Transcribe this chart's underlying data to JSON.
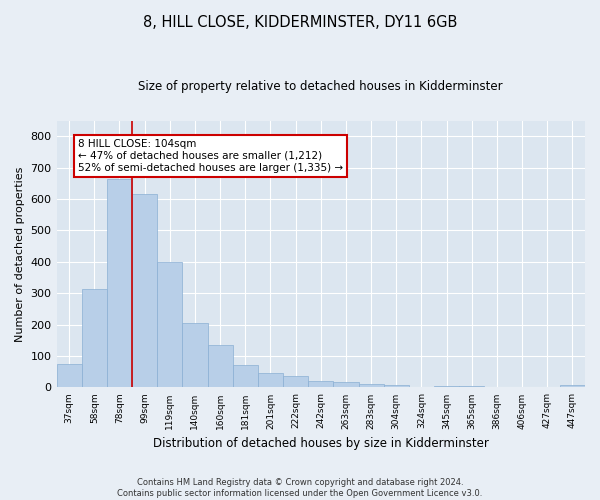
{
  "title": "8, HILL CLOSE, KIDDERMINSTER, DY11 6GB",
  "subtitle": "Size of property relative to detached houses in Kidderminster",
  "xlabel": "Distribution of detached houses by size in Kidderminster",
  "ylabel": "Number of detached properties",
  "categories": [
    "37sqm",
    "58sqm",
    "78sqm",
    "99sqm",
    "119sqm",
    "140sqm",
    "160sqm",
    "181sqm",
    "201sqm",
    "222sqm",
    "242sqm",
    "263sqm",
    "283sqm",
    "304sqm",
    "324sqm",
    "345sqm",
    "365sqm",
    "386sqm",
    "406sqm",
    "427sqm",
    "447sqm"
  ],
  "values": [
    75,
    315,
    665,
    615,
    400,
    205,
    135,
    70,
    47,
    37,
    20,
    18,
    12,
    8,
    0,
    6,
    6,
    0,
    0,
    0,
    7
  ],
  "bar_color": "#b8cfe8",
  "bar_edge_color": "#8aafd4",
  "highlight_line_color": "#cc0000",
  "annotation_text": "8 HILL CLOSE: 104sqm\n← 47% of detached houses are smaller (1,212)\n52% of semi-detached houses are larger (1,335) →",
  "annotation_box_color": "#ffffff",
  "annotation_box_edge": "#cc0000",
  "ylim": [
    0,
    850
  ],
  "yticks": [
    0,
    100,
    200,
    300,
    400,
    500,
    600,
    700,
    800
  ],
  "footer": "Contains HM Land Registry data © Crown copyright and database right 2024.\nContains public sector information licensed under the Open Government Licence v3.0.",
  "fig_bg_color": "#e8eef5",
  "plot_bg_color": "#dce6f0"
}
